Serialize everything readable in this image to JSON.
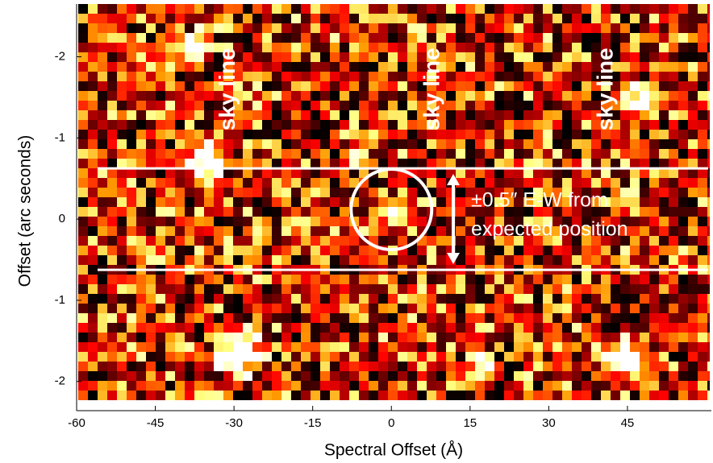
{
  "chart_data": {
    "type": "heatmap",
    "x_label": "Spectral Offset (Å)",
    "y_label": "Offset (arc seconds)",
    "xlim": [
      -60,
      61
    ],
    "xticks": [
      -60,
      -45,
      -30,
      -15,
      0,
      15,
      30,
      45
    ],
    "ylim": [
      -2.36,
      2.65
    ],
    "yticks": [
      {
        "value": 2,
        "label": "-2"
      },
      {
        "value": 1,
        "label": "-1"
      },
      0,
      -1,
      -2
    ],
    "hlines": [
      0.625,
      -0.625
    ],
    "annotations": [
      {
        "text": "sky line",
        "x": -31,
        "y": 1.6
      },
      {
        "text": "sky line",
        "x": 8,
        "y": 1.6
      },
      {
        "text": "sky line",
        "x": 41,
        "y": 1.6
      }
    ],
    "note_lines": [
      "±0.5″ E-W from",
      "expected position"
    ]
  }
}
